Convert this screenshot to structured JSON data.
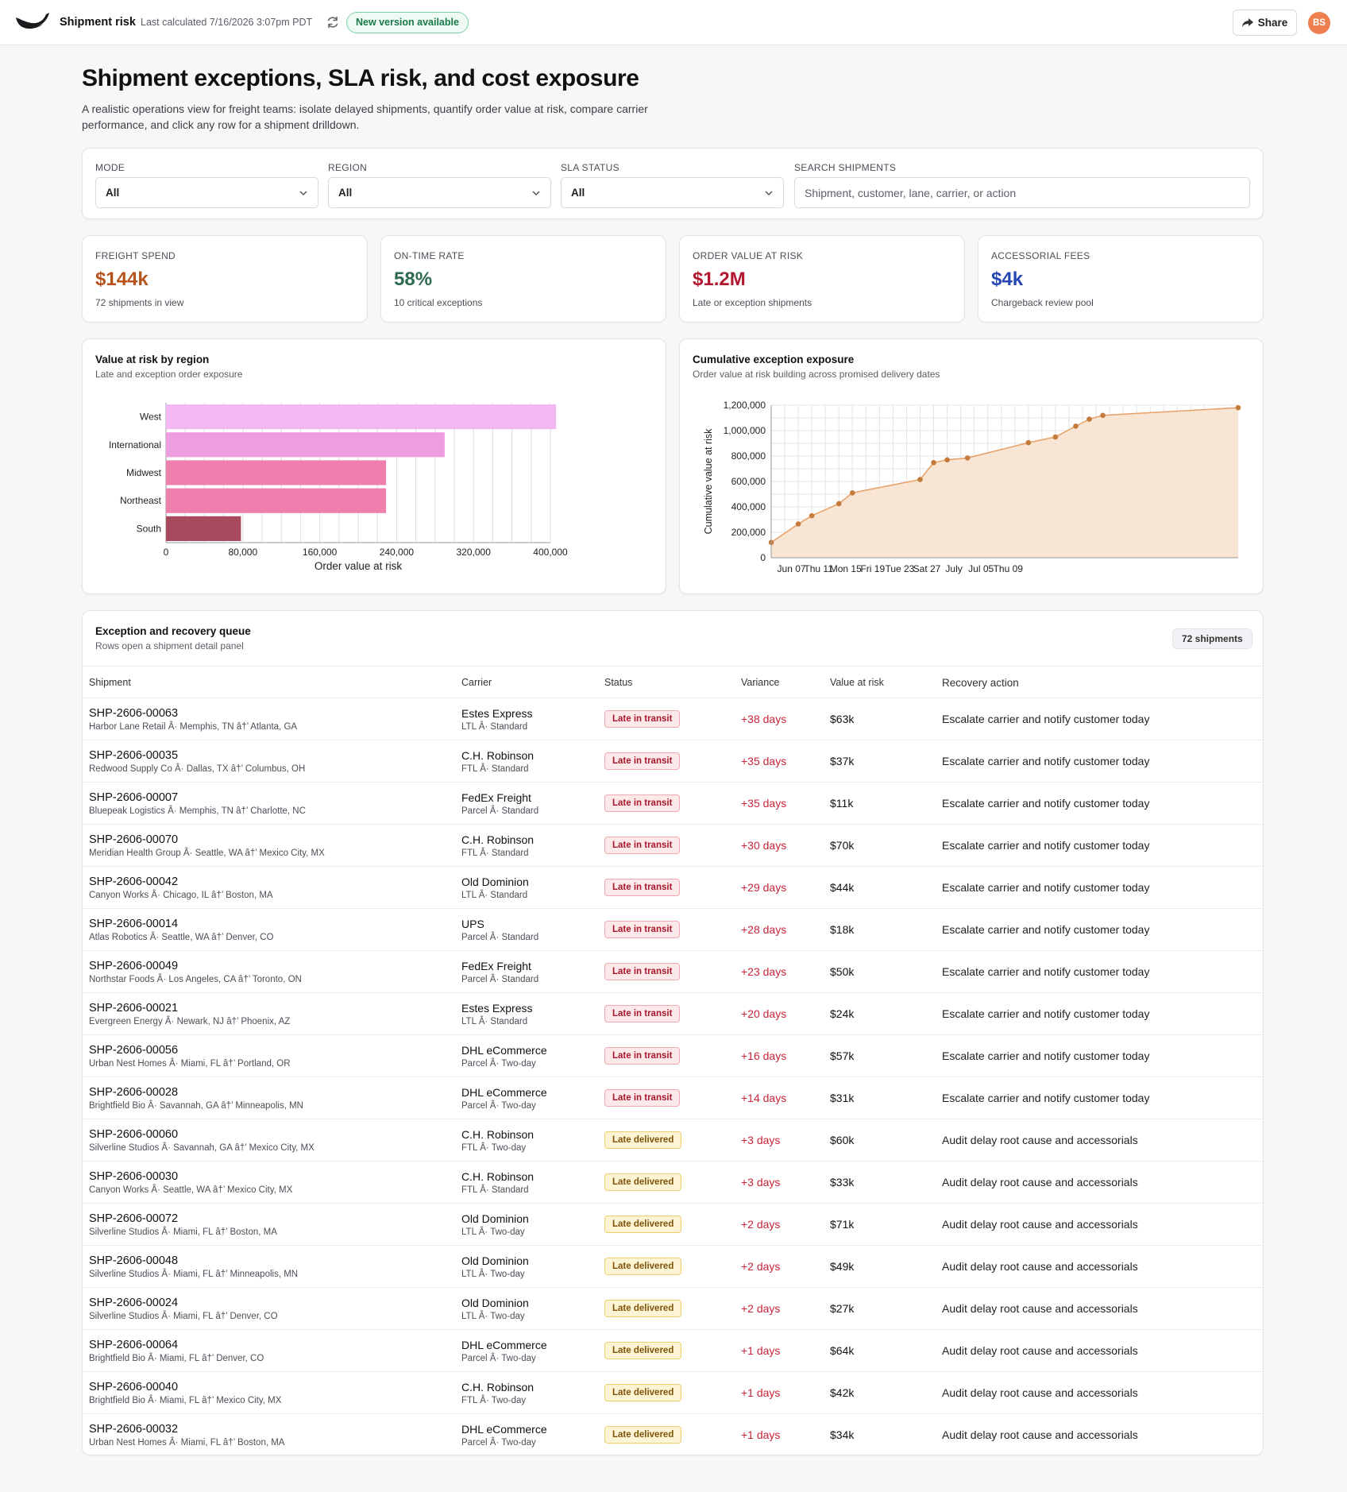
{
  "header": {
    "app_title": "Shipment risk",
    "last_calculated": "Last calculated 7/16/2026 3:07pm PDT",
    "new_version": "New version available",
    "share_label": "Share",
    "avatar_initials": "BS"
  },
  "page": {
    "title": "Shipment exceptions, SLA risk, and cost exposure",
    "description": "A realistic operations view for freight teams: isolate delayed shipments, quantify order value at risk, compare carrier performance, and click any row for a shipment drilldown."
  },
  "filters": {
    "mode": {
      "label": "Mode",
      "value": "All"
    },
    "region": {
      "label": "Region",
      "value": "All"
    },
    "sla": {
      "label": "SLA status",
      "value": "All"
    },
    "search": {
      "label": "Search shipments",
      "placeholder": "Shipment, customer, lane, carrier, or action"
    }
  },
  "kpis": [
    {
      "label": "Freight spend",
      "value": "$144k",
      "sub": "72 shipments in view",
      "color": "#b5531a"
    },
    {
      "label": "On-time rate",
      "value": "58%",
      "sub": "10 critical exceptions",
      "color": "#2d6a4f"
    },
    {
      "label": "Order value at risk",
      "value": "$1.2M",
      "sub": "Late or exception shipments",
      "color": "#b3172f"
    },
    {
      "label": "Accessorial fees",
      "value": "$4k",
      "sub": "Chargeback review pool",
      "color": "#2447b3"
    }
  ],
  "region_chart": {
    "title": "Value at risk by region",
    "subtitle": "Late and exception order exposure",
    "chart_data": {
      "type": "bar",
      "orientation": "horizontal",
      "categories": [
        "West",
        "International",
        "Midwest",
        "Northeast",
        "South"
      ],
      "values": [
        406000,
        290000,
        229000,
        229000,
        78000
      ],
      "colors": [
        "#f3b8f3",
        "#ee9de1",
        "#ee7fac",
        "#ee7fac",
        "#a84a5e"
      ],
      "xlabel": "Order value at risk",
      "xlim": [
        0,
        400000
      ],
      "xticks": [
        0,
        80000,
        160000,
        240000,
        320000,
        400000
      ],
      "xtick_labels": [
        "0",
        "80,000",
        "160,000",
        "240,000",
        "320,000",
        "400,000"
      ],
      "grid": true
    }
  },
  "exposure_chart": {
    "title": "Cumulative exception exposure",
    "subtitle": "Order value at risk building across promised delivery dates",
    "chart_data": {
      "type": "area",
      "x": [
        "2026-06-04",
        "2026-06-08",
        "2026-06-10",
        "2026-06-14",
        "2026-06-16",
        "2026-06-26",
        "2026-06-28",
        "2026-06-30",
        "2026-07-03",
        "2026-07-12",
        "2026-07-16",
        "2026-07-19",
        "2026-07-21",
        "2026-07-23",
        "2026-08-12"
      ],
      "y": [
        120000,
        265000,
        330000,
        425000,
        510000,
        615000,
        748000,
        770000,
        785000,
        905000,
        950000,
        1035000,
        1090000,
        1120000,
        1180000
      ],
      "ylabel": "Cumulative value at risk",
      "ylim": [
        0,
        1200000
      ],
      "yticks": [
        0,
        200000,
        400000,
        600000,
        800000,
        1000000,
        1200000
      ],
      "ytick_labels": [
        "0",
        "200,000",
        "400,000",
        "600,000",
        "800,000",
        "1,000,000",
        "1,200,000"
      ],
      "xtick_labels": [
        "Jun 07",
        "Thu 11",
        "Mon 15",
        "Fri 19",
        "Tue 23",
        "Sat 27",
        "July",
        "Jul 05",
        "Thu 09"
      ],
      "xtick_dates": [
        "2026-06-07",
        "2026-06-11",
        "2026-06-15",
        "2026-06-19",
        "2026-06-23",
        "2026-06-27",
        "2026-07-01",
        "2026-07-05",
        "2026-07-09"
      ],
      "line_color": "#e8a36c",
      "fill_color": "#f8e5d4",
      "point_color": "#c47a3b",
      "grid": true
    }
  },
  "table": {
    "title": "Exception and recovery queue",
    "subtitle": "Rows open a shipment detail panel",
    "count": "72 shipments",
    "columns": [
      "Shipment",
      "Carrier",
      "Status",
      "Variance",
      "Value at risk",
      "Recovery action"
    ],
    "rows": [
      {
        "id": "SHP-2606-00063",
        "route": "Harbor Lane Retail Â· Memphis, TN â†’ Atlanta, GA",
        "carrier": "Estes Express",
        "service": "LTL Â· Standard",
        "status": "Late in transit",
        "variance": "+38 days",
        "value": "$63k",
        "action": "Escalate carrier and notify customer today"
      },
      {
        "id": "SHP-2606-00035",
        "route": "Redwood Supply Co Â· Dallas, TX â†’ Columbus, OH",
        "carrier": "C.H. Robinson",
        "service": "FTL Â· Standard",
        "status": "Late in transit",
        "variance": "+35 days",
        "value": "$37k",
        "action": "Escalate carrier and notify customer today"
      },
      {
        "id": "SHP-2606-00007",
        "route": "Bluepeak Logistics Â· Memphis, TN â†’ Charlotte, NC",
        "carrier": "FedEx Freight",
        "service": "Parcel Â· Standard",
        "status": "Late in transit",
        "variance": "+35 days",
        "value": "$11k",
        "action": "Escalate carrier and notify customer today"
      },
      {
        "id": "SHP-2606-00070",
        "route": "Meridian Health Group Â· Seattle, WA â†’ Mexico City, MX",
        "carrier": "C.H. Robinson",
        "service": "FTL Â· Standard",
        "status": "Late in transit",
        "variance": "+30 days",
        "value": "$70k",
        "action": "Escalate carrier and notify customer today"
      },
      {
        "id": "SHP-2606-00042",
        "route": "Canyon Works Â· Chicago, IL â†’ Boston, MA",
        "carrier": "Old Dominion",
        "service": "LTL Â· Standard",
        "status": "Late in transit",
        "variance": "+29 days",
        "value": "$44k",
        "action": "Escalate carrier and notify customer today"
      },
      {
        "id": "SHP-2606-00014",
        "route": "Atlas Robotics Â· Seattle, WA â†’ Denver, CO",
        "carrier": "UPS",
        "service": "Parcel Â· Standard",
        "status": "Late in transit",
        "variance": "+28 days",
        "value": "$18k",
        "action": "Escalate carrier and notify customer today"
      },
      {
        "id": "SHP-2606-00049",
        "route": "Northstar Foods Â· Los Angeles, CA â†’ Toronto, ON",
        "carrier": "FedEx Freight",
        "service": "Parcel Â· Standard",
        "status": "Late in transit",
        "variance": "+23 days",
        "value": "$50k",
        "action": "Escalate carrier and notify customer today"
      },
      {
        "id": "SHP-2606-00021",
        "route": "Evergreen Energy Â· Newark, NJ â†’ Phoenix, AZ",
        "carrier": "Estes Express",
        "service": "LTL Â· Standard",
        "status": "Late in transit",
        "variance": "+20 days",
        "value": "$24k",
        "action": "Escalate carrier and notify customer today"
      },
      {
        "id": "SHP-2606-00056",
        "route": "Urban Nest Homes Â· Miami, FL â†’ Portland, OR",
        "carrier": "DHL eCommerce",
        "service": "Parcel Â· Two-day",
        "status": "Late in transit",
        "variance": "+16 days",
        "value": "$57k",
        "action": "Escalate carrier and notify customer today"
      },
      {
        "id": "SHP-2606-00028",
        "route": "Brightfield Bio Â· Savannah, GA â†’ Minneapolis, MN",
        "carrier": "DHL eCommerce",
        "service": "Parcel Â· Two-day",
        "status": "Late in transit",
        "variance": "+14 days",
        "value": "$31k",
        "action": "Escalate carrier and notify customer today"
      },
      {
        "id": "SHP-2606-00060",
        "route": "Silverline Studios Â· Savannah, GA â†’ Mexico City, MX",
        "carrier": "C.H. Robinson",
        "service": "FTL Â· Two-day",
        "status": "Late delivered",
        "variance": "+3 days",
        "value": "$60k",
        "action": "Audit delay root cause and accessorials"
      },
      {
        "id": "SHP-2606-00030",
        "route": "Canyon Works Â· Seattle, WA â†’ Mexico City, MX",
        "carrier": "C.H. Robinson",
        "service": "FTL Â· Standard",
        "status": "Late delivered",
        "variance": "+3 days",
        "value": "$33k",
        "action": "Audit delay root cause and accessorials"
      },
      {
        "id": "SHP-2606-00072",
        "route": "Silverline Studios Â· Miami, FL â†’ Boston, MA",
        "carrier": "Old Dominion",
        "service": "LTL Â· Two-day",
        "status": "Late delivered",
        "variance": "+2 days",
        "value": "$71k",
        "action": "Audit delay root cause and accessorials"
      },
      {
        "id": "SHP-2606-00048",
        "route": "Silverline Studios Â· Miami, FL â†’ Minneapolis, MN",
        "carrier": "Old Dominion",
        "service": "LTL Â· Two-day",
        "status": "Late delivered",
        "variance": "+2 days",
        "value": "$49k",
        "action": "Audit delay root cause and accessorials"
      },
      {
        "id": "SHP-2606-00024",
        "route": "Silverline Studios Â· Miami, FL â†’ Denver, CO",
        "carrier": "Old Dominion",
        "service": "LTL Â· Two-day",
        "status": "Late delivered",
        "variance": "+2 days",
        "value": "$27k",
        "action": "Audit delay root cause and accessorials"
      },
      {
        "id": "SHP-2606-00064",
        "route": "Brightfield Bio Â· Miami, FL â†’ Denver, CO",
        "carrier": "DHL eCommerce",
        "service": "Parcel Â· Two-day",
        "status": "Late delivered",
        "variance": "+1 days",
        "value": "$64k",
        "action": "Audit delay root cause and accessorials"
      },
      {
        "id": "SHP-2606-00040",
        "route": "Brightfield Bio Â· Miami, FL â†’ Mexico City, MX",
        "carrier": "C.H. Robinson",
        "service": "FTL Â· Two-day",
        "status": "Late delivered",
        "variance": "+1 days",
        "value": "$42k",
        "action": "Audit delay root cause and accessorials"
      },
      {
        "id": "SHP-2606-00032",
        "route": "Urban Nest Homes Â· Miami, FL â†’ Boston, MA",
        "carrier": "DHL eCommerce",
        "service": "Parcel Â· Two-day",
        "status": "Late delivered",
        "variance": "+1 days",
        "value": "$34k",
        "action": "Audit delay root cause and accessorials"
      }
    ]
  }
}
